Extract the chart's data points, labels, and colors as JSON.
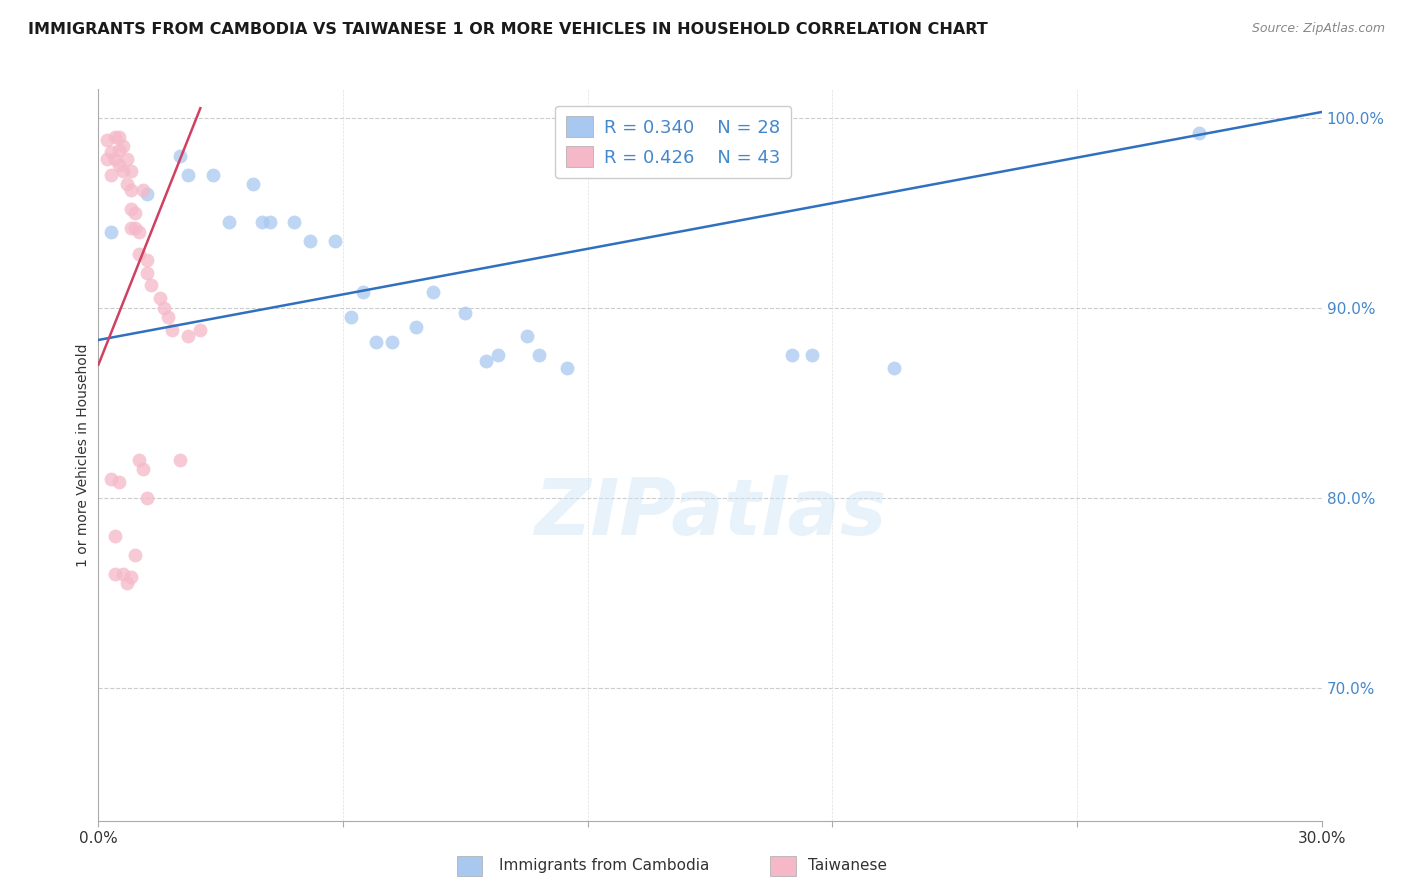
{
  "title": "IMMIGRANTS FROM CAMBODIA VS TAIWANESE 1 OR MORE VEHICLES IN HOUSEHOLD CORRELATION CHART",
  "source": "Source: ZipAtlas.com",
  "ylabel": "1 or more Vehicles in Household",
  "xmin": 0.0,
  "xmax": 0.3,
  "ymin": 0.63,
  "ymax": 1.015,
  "right_yticks": [
    1.0,
    0.9,
    0.8,
    0.7
  ],
  "right_ytick_labels": [
    "100.0%",
    "90.0%",
    "80.0%",
    "70.0%"
  ],
  "watermark": "ZIPatlas",
  "legend_blue_r": "0.340",
  "legend_blue_n": "28",
  "legend_pink_r": "0.426",
  "legend_pink_n": "43",
  "blue_scatter_x": [
    0.003,
    0.012,
    0.02,
    0.022,
    0.028,
    0.032,
    0.038,
    0.04,
    0.042,
    0.048,
    0.052,
    0.058,
    0.062,
    0.065,
    0.068,
    0.072,
    0.078,
    0.082,
    0.09,
    0.095,
    0.098,
    0.105,
    0.108,
    0.115,
    0.17,
    0.175,
    0.195,
    0.27
  ],
  "blue_scatter_y": [
    0.94,
    0.96,
    0.98,
    0.97,
    0.97,
    0.945,
    0.965,
    0.945,
    0.945,
    0.945,
    0.935,
    0.935,
    0.895,
    0.908,
    0.882,
    0.882,
    0.89,
    0.908,
    0.897,
    0.872,
    0.875,
    0.885,
    0.875,
    0.868,
    0.875,
    0.875,
    0.868,
    0.992
  ],
  "pink_scatter_x": [
    0.002,
    0.002,
    0.003,
    0.003,
    0.004,
    0.004,
    0.005,
    0.005,
    0.005,
    0.006,
    0.006,
    0.007,
    0.007,
    0.008,
    0.008,
    0.008,
    0.008,
    0.009,
    0.009,
    0.01,
    0.01,
    0.011,
    0.012,
    0.012,
    0.013,
    0.015,
    0.016,
    0.017,
    0.018,
    0.02,
    0.022,
    0.025,
    0.003,
    0.004,
    0.004,
    0.005,
    0.006,
    0.007,
    0.008,
    0.009,
    0.01,
    0.011,
    0.012
  ],
  "pink_scatter_y": [
    0.988,
    0.978,
    0.982,
    0.97,
    0.99,
    0.978,
    0.99,
    0.983,
    0.975,
    0.985,
    0.972,
    0.978,
    0.965,
    0.972,
    0.962,
    0.952,
    0.942,
    0.95,
    0.942,
    0.94,
    0.928,
    0.962,
    0.925,
    0.918,
    0.912,
    0.905,
    0.9,
    0.895,
    0.888,
    0.82,
    0.885,
    0.888,
    0.81,
    0.78,
    0.76,
    0.808,
    0.76,
    0.755,
    0.758,
    0.77,
    0.82,
    0.815,
    0.8
  ],
  "blue_line_x": [
    0.0,
    0.3
  ],
  "blue_line_y": [
    0.883,
    1.003
  ],
  "pink_line_x": [
    0.0,
    0.025
  ],
  "pink_line_y": [
    0.87,
    1.005
  ],
  "blue_color": "#A8C8F0",
  "pink_color": "#F5B8C8",
  "blue_line_color": "#3070C0",
  "pink_line_color": "#D04060",
  "grid_color": "#CCCCCC",
  "right_axis_color": "#4488CC",
  "background_color": "#FFFFFF"
}
